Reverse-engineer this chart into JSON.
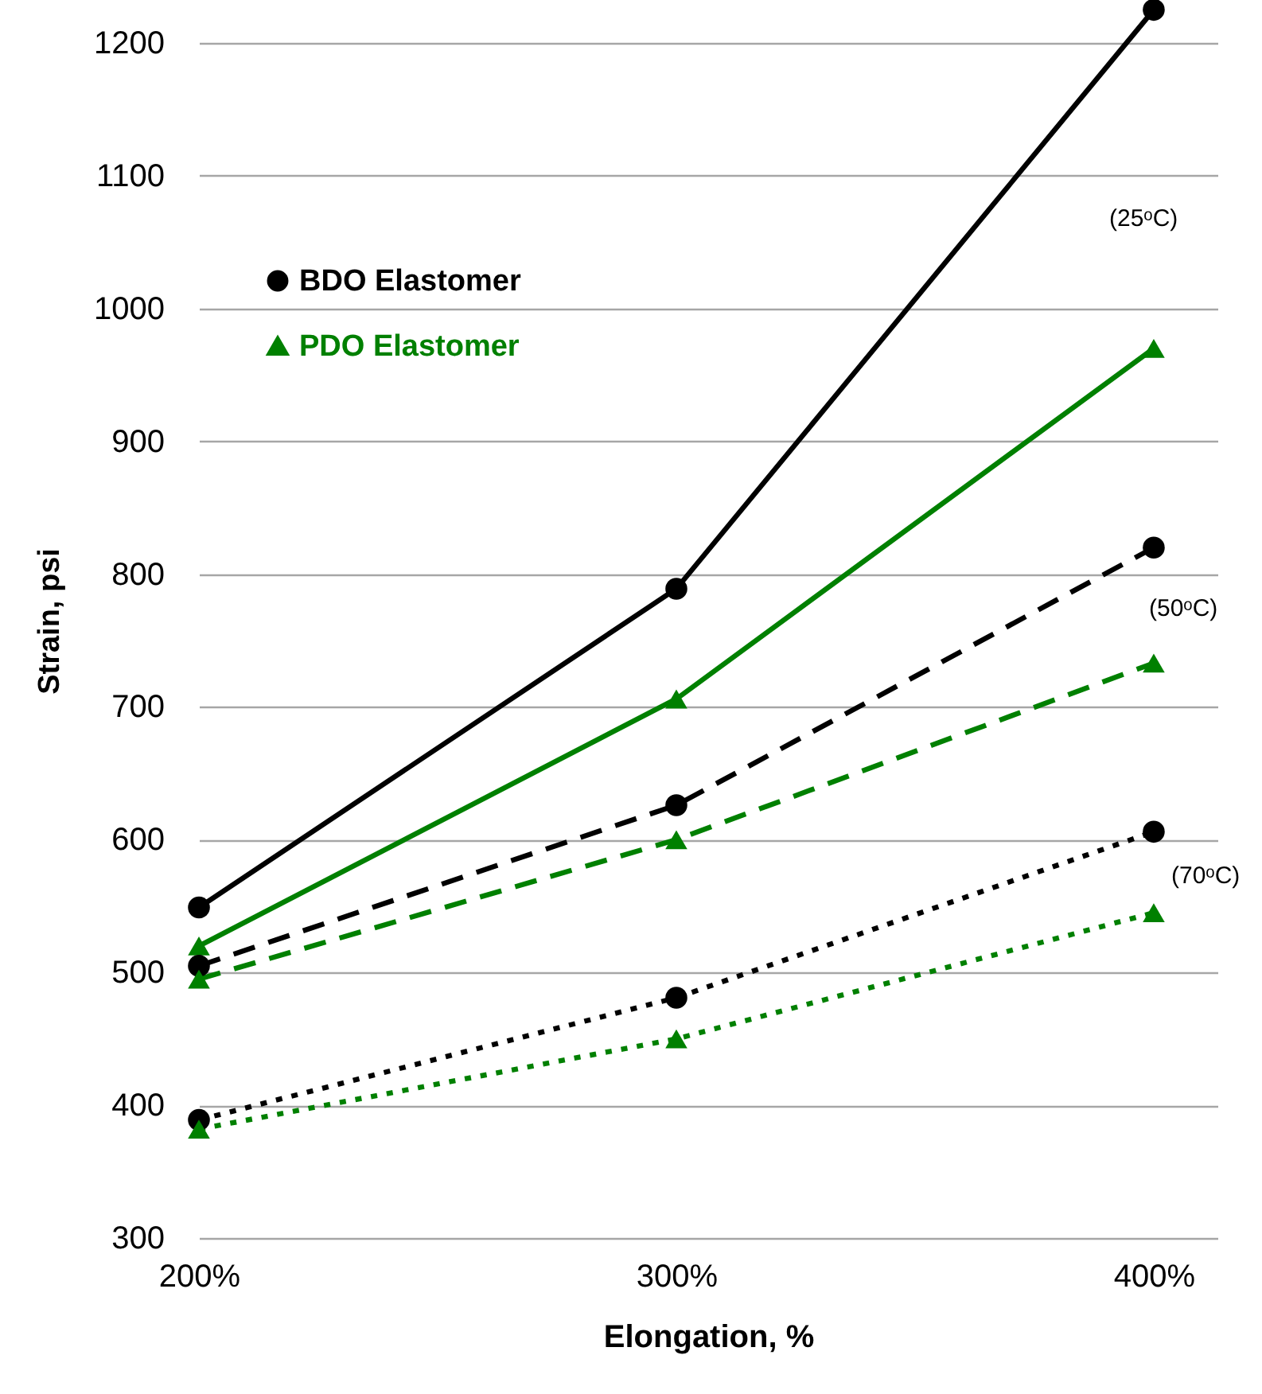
{
  "chart_data": {
    "type": "line",
    "xlabel": "Elongation, %",
    "ylabel": "Strain, psi",
    "categories": [
      "200%",
      "300%",
      "400%"
    ],
    "series": [
      {
        "name": "BDO Elastomer",
        "color": "#000000",
        "marker": "circle",
        "line_style": "solid",
        "values": [
          549,
          789,
          1225
        ]
      },
      {
        "name": "PDO Elastomer",
        "color": "#008000",
        "marker": "triangle",
        "line_style": "solid",
        "values": [
          520,
          706,
          970
        ]
      },
      {
        "color": "#000000",
        "marker": "circle",
        "line_style": "dashed",
        "values": [
          505,
          626,
          820
        ]
      },
      {
        "color": "#008000",
        "marker": "triangle",
        "line_style": "dashed",
        "values": [
          495,
          600,
          733
        ]
      },
      {
        "color": "#000000",
        "marker": "circle",
        "line_style": "dotted",
        "values": [
          389,
          481,
          606
        ]
      },
      {
        "color": "#008000",
        "marker": "triangle",
        "line_style": "dotted",
        "values": [
          382,
          450,
          545
        ]
      }
    ],
    "annotations": [
      "(25ᵒC)",
      "(50ᵒC)",
      "(70ᵒC)"
    ],
    "ylim": [
      300,
      1230
    ],
    "yticks": [
      300,
      400,
      500,
      600,
      700,
      800,
      900,
      1000,
      1100,
      1200
    ],
    "grid": "y",
    "legend": "top left"
  }
}
